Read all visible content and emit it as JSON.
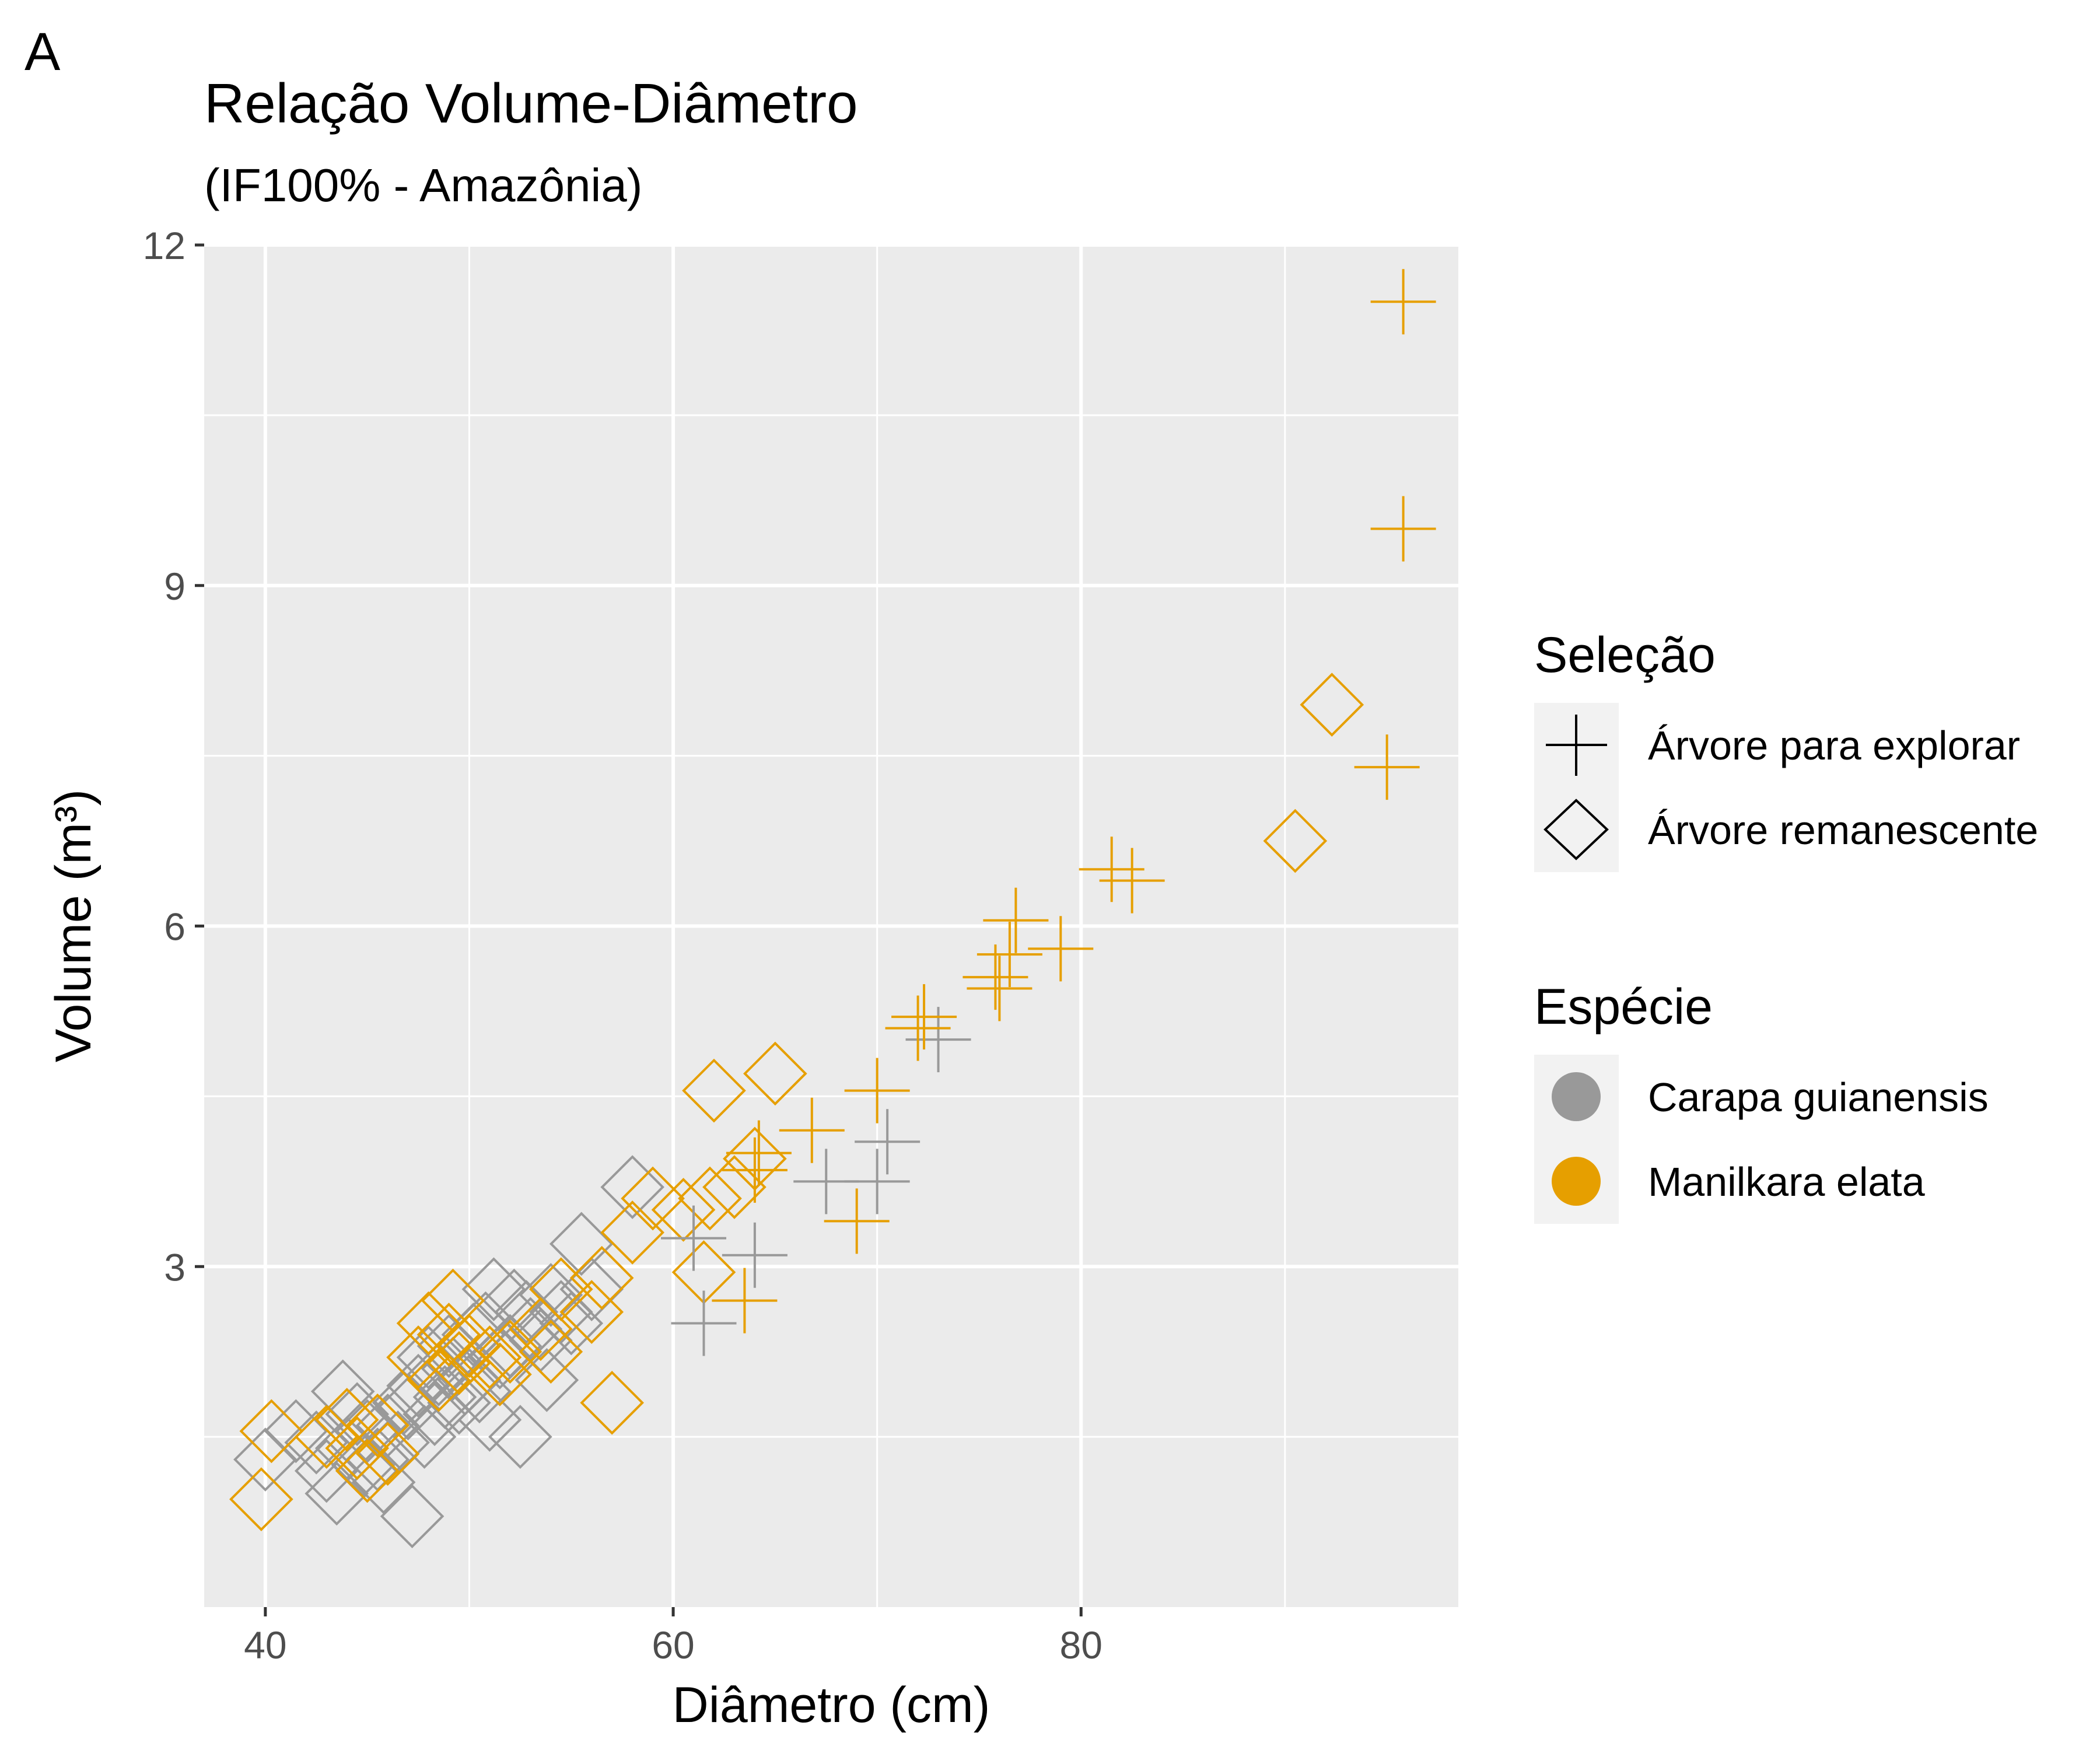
{
  "panel_tag": "A",
  "chart_data": {
    "type": "scatter",
    "title": "Relação Volume-Diâmetro",
    "subtitle": "(IF100% - Amazônia)",
    "xlabel": "Diâmetro (cm)",
    "ylabel": "Volume (m³)",
    "xlim": [
      37,
      98.5
    ],
    "ylim": [
      0,
      12
    ],
    "x_ticks": [
      40,
      60,
      80
    ],
    "y_ticks": [
      3,
      6,
      9,
      12
    ],
    "x_tick_labels": [
      "40",
      "60",
      "80"
    ],
    "y_tick_labels": [
      "3",
      "6",
      "9",
      "12"
    ],
    "grid": true,
    "legend_position": "right",
    "legends": {
      "shape": {
        "title": "Seleção",
        "entries": [
          {
            "label": "Árvore para explorar",
            "shape": "plus"
          },
          {
            "label": "Árvore remanescente",
            "shape": "diamond"
          }
        ]
      },
      "color": {
        "title": "Espécie",
        "entries": [
          {
            "label": "Carapa guianensis",
            "color": "#999999"
          },
          {
            "label": "Manilkara elata",
            "color": "#E69F00"
          }
        ]
      }
    },
    "series": [
      {
        "species": "Carapa guianensis",
        "selection": "Árvore remanescente",
        "color": "#999999",
        "shape": "diamond",
        "points": [
          [
            40,
            1.3
          ],
          [
            41.5,
            1.55
          ],
          [
            42.5,
            1.45
          ],
          [
            43,
            1.2
          ],
          [
            43.5,
            1.0
          ],
          [
            43.8,
            1.9
          ],
          [
            44,
            1.4
          ],
          [
            44.5,
            1.7
          ],
          [
            44.8,
            1.25
          ],
          [
            45,
            1.55
          ],
          [
            45.5,
            1.3
          ],
          [
            45.8,
            1.1
          ],
          [
            46,
            1.6
          ],
          [
            46.5,
            1.45
          ],
          [
            46.8,
            1.8
          ],
          [
            47,
            1.75
          ],
          [
            47.2,
            0.8
          ],
          [
            47.5,
            1.95
          ],
          [
            47.8,
            1.5
          ],
          [
            48,
            2.2
          ],
          [
            48.3,
            1.7
          ],
          [
            48.5,
            2.05
          ],
          [
            48.8,
            1.85
          ],
          [
            49,
            2.3
          ],
          [
            49.2,
            2.1
          ],
          [
            49.5,
            1.8
          ],
          [
            50,
            2.0
          ],
          [
            50.2,
            2.4
          ],
          [
            50.5,
            1.9
          ],
          [
            50.8,
            2.5
          ],
          [
            51,
            1.65
          ],
          [
            51.2,
            2.8
          ],
          [
            51.5,
            2.2
          ],
          [
            52,
            2.3
          ],
          [
            52.2,
            2.7
          ],
          [
            52.5,
            1.5
          ],
          [
            52.8,
            2.6
          ],
          [
            53,
            2.45
          ],
          [
            53.5,
            2.35
          ],
          [
            53.8,
            2.0
          ],
          [
            54,
            2.75
          ],
          [
            54.5,
            2.6
          ],
          [
            55,
            2.5
          ],
          [
            55.5,
            3.2
          ],
          [
            56,
            2.8
          ],
          [
            58,
            3.7
          ]
        ]
      },
      {
        "species": "Manilkara elata",
        "selection": "Árvore remanescente",
        "color": "#E69F00",
        "shape": "diamond",
        "points": [
          [
            39.8,
            0.95
          ],
          [
            40.3,
            1.55
          ],
          [
            43,
            1.5
          ],
          [
            44,
            1.65
          ],
          [
            44.5,
            1.4
          ],
          [
            45,
            1.2
          ],
          [
            45.5,
            1.6
          ],
          [
            46,
            1.35
          ],
          [
            47.5,
            2.2
          ],
          [
            48,
            2.5
          ],
          [
            48.5,
            2.0
          ],
          [
            49,
            2.4
          ],
          [
            49.2,
            2.7
          ],
          [
            49.5,
            2.15
          ],
          [
            50,
            2.3
          ],
          [
            51,
            2.2
          ],
          [
            51.5,
            2.05
          ],
          [
            52,
            2.25
          ],
          [
            53.5,
            2.45
          ],
          [
            54,
            2.25
          ],
          [
            54.5,
            2.8
          ],
          [
            56,
            2.6
          ],
          [
            56.5,
            2.9
          ],
          [
            57,
            1.8
          ],
          [
            58,
            3.3
          ],
          [
            59,
            3.6
          ],
          [
            60.5,
            3.5
          ],
          [
            61.5,
            2.95
          ],
          [
            61.8,
            3.6
          ],
          [
            62,
            4.55
          ],
          [
            63,
            3.7
          ],
          [
            64,
            3.95
          ],
          [
            65,
            4.7
          ],
          [
            90.5,
            6.75
          ],
          [
            92.3,
            7.95
          ]
        ]
      },
      {
        "species": "Carapa guianensis",
        "selection": "Árvore para explorar",
        "color": "#999999",
        "shape": "plus",
        "points": [
          [
            61,
            3.25
          ],
          [
            61.5,
            2.5
          ],
          [
            64,
            3.1
          ],
          [
            67.5,
            3.75
          ],
          [
            70,
            3.75
          ],
          [
            70.5,
            4.1
          ],
          [
            73,
            5.0
          ]
        ]
      },
      {
        "species": "Manilkara elata",
        "selection": "Árvore para explorar",
        "color": "#E69F00",
        "shape": "plus",
        "points": [
          [
            63.5,
            2.7
          ],
          [
            64,
            3.85
          ],
          [
            64.2,
            4.0
          ],
          [
            66.8,
            4.2
          ],
          [
            69,
            3.4
          ],
          [
            70,
            4.55
          ],
          [
            72,
            5.1
          ],
          [
            72.3,
            5.2
          ],
          [
            75.8,
            5.55
          ],
          [
            76,
            5.45
          ],
          [
            76.5,
            5.75
          ],
          [
            76.8,
            6.05
          ],
          [
            79,
            5.8
          ],
          [
            81.5,
            6.5
          ],
          [
            82.5,
            6.4
          ],
          [
            95,
            7.4
          ],
          [
            95.8,
            9.5
          ],
          [
            95.8,
            11.5
          ]
        ]
      }
    ]
  }
}
